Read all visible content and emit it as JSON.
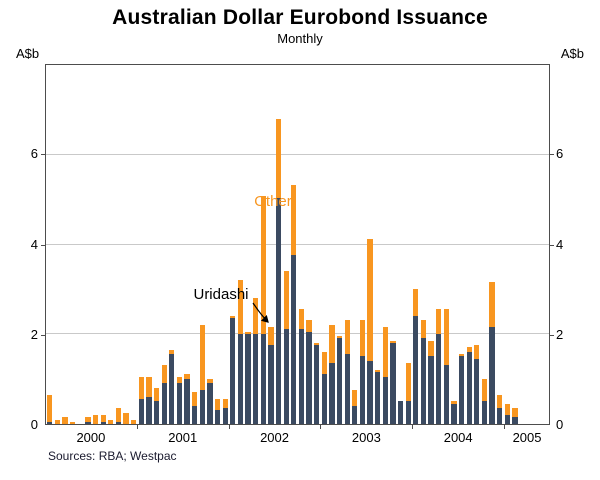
{
  "title": "Australian Dollar Eurobond Issuance",
  "subtitle": "Monthly",
  "axis_unit_left": "A$b",
  "axis_unit_right": "A$b",
  "source": "Sources:  RBA; Westpac",
  "annotations": {
    "other": "Other",
    "uridashi": "Uridashi"
  },
  "colors": {
    "uridashi": "#3b4a61",
    "other": "#f89620",
    "gridline": "#c9c9c9"
  },
  "chart_data": {
    "type": "bar",
    "stacked": true,
    "title": "Australian Dollar Eurobond Issuance",
    "subtitle": "Monthly",
    "ylabel": "A$b",
    "ylim": [
      0,
      8
    ],
    "yticks": [
      0,
      2,
      4,
      6
    ],
    "grid": true,
    "series_names": [
      "Uridashi",
      "Other"
    ],
    "x_year_labels": [
      "2000",
      "2001",
      "2002",
      "2003",
      "2004",
      "2005"
    ],
    "months": [
      {
        "m": "2000-01",
        "u": 0.05,
        "o": 0.6
      },
      {
        "m": "2000-02",
        "u": 0,
        "o": 0.1
      },
      {
        "m": "2000-03",
        "u": 0,
        "o": 0.15
      },
      {
        "m": "2000-04",
        "u": 0,
        "o": 0.05
      },
      {
        "m": "2000-05",
        "u": 0,
        "o": 0
      },
      {
        "m": "2000-06",
        "u": 0.05,
        "o": 0.1
      },
      {
        "m": "2000-07",
        "u": 0,
        "o": 0.2
      },
      {
        "m": "2000-08",
        "u": 0.05,
        "o": 0.15
      },
      {
        "m": "2000-09",
        "u": 0,
        "o": 0.1
      },
      {
        "m": "2000-10",
        "u": 0.05,
        "o": 0.3
      },
      {
        "m": "2000-11",
        "u": 0,
        "o": 0.25
      },
      {
        "m": "2000-12",
        "u": 0,
        "o": 0.1
      },
      {
        "m": "2001-01",
        "u": 0.55,
        "o": 0.5
      },
      {
        "m": "2001-02",
        "u": 0.6,
        "o": 0.45
      },
      {
        "m": "2001-03",
        "u": 0.5,
        "o": 0.3
      },
      {
        "m": "2001-04",
        "u": 0.9,
        "o": 0.4
      },
      {
        "m": "2001-05",
        "u": 1.55,
        "o": 0.1
      },
      {
        "m": "2001-06",
        "u": 0.9,
        "o": 0.15
      },
      {
        "m": "2001-07",
        "u": 1.0,
        "o": 0.1
      },
      {
        "m": "2001-08",
        "u": 0.4,
        "o": 0.3
      },
      {
        "m": "2001-09",
        "u": 0.75,
        "o": 1.45
      },
      {
        "m": "2001-10",
        "u": 0.9,
        "o": 0.1
      },
      {
        "m": "2001-11",
        "u": 0.3,
        "o": 0.25
      },
      {
        "m": "2001-12",
        "u": 0.35,
        "o": 0.2
      },
      {
        "m": "2002-01",
        "u": 2.35,
        "o": 0.05
      },
      {
        "m": "2002-02",
        "u": 2.0,
        "o": 1.2
      },
      {
        "m": "2002-03",
        "u": 2.0,
        "o": 0.05
      },
      {
        "m": "2002-04",
        "u": 2.0,
        "o": 0.8
      },
      {
        "m": "2002-05",
        "u": 2.0,
        "o": 3.05
      },
      {
        "m": "2002-06",
        "u": 1.75,
        "o": 0.4
      },
      {
        "m": "2002-07",
        "u": 5.0,
        "o": 1.75
      },
      {
        "m": "2002-08",
        "u": 2.1,
        "o": 1.3
      },
      {
        "m": "2002-09",
        "u": 3.75,
        "o": 1.55
      },
      {
        "m": "2002-10",
        "u": 2.1,
        "o": 0.45
      },
      {
        "m": "2002-11",
        "u": 2.05,
        "o": 0.25
      },
      {
        "m": "2002-12",
        "u": 1.75,
        "o": 0.05
      },
      {
        "m": "2003-01",
        "u": 1.1,
        "o": 0.5
      },
      {
        "m": "2003-02",
        "u": 1.35,
        "o": 0.85
      },
      {
        "m": "2003-03",
        "u": 1.9,
        "o": 0.05
      },
      {
        "m": "2003-04",
        "u": 1.55,
        "o": 0.75
      },
      {
        "m": "2003-05",
        "u": 0.4,
        "o": 0.35
      },
      {
        "m": "2003-06",
        "u": 1.5,
        "o": 0.8
      },
      {
        "m": "2003-07",
        "u": 1.4,
        "o": 2.7
      },
      {
        "m": "2003-08",
        "u": 1.15,
        "o": 0.05
      },
      {
        "m": "2003-09",
        "u": 1.05,
        "o": 1.1
      },
      {
        "m": "2003-10",
        "u": 1.8,
        "o": 0.05
      },
      {
        "m": "2003-11",
        "u": 0.5,
        "o": 0
      },
      {
        "m": "2003-12",
        "u": 0.5,
        "o": 0.85
      },
      {
        "m": "2004-01",
        "u": 2.4,
        "o": 0.6
      },
      {
        "m": "2004-02",
        "u": 1.9,
        "o": 0.4
      },
      {
        "m": "2004-03",
        "u": 1.5,
        "o": 0.35
      },
      {
        "m": "2004-04",
        "u": 2.0,
        "o": 0.55
      },
      {
        "m": "2004-05",
        "u": 1.3,
        "o": 1.25
      },
      {
        "m": "2004-06",
        "u": 0.45,
        "o": 0.05
      },
      {
        "m": "2004-07",
        "u": 1.5,
        "o": 0.05
      },
      {
        "m": "2004-08",
        "u": 1.6,
        "o": 0.1
      },
      {
        "m": "2004-09",
        "u": 1.45,
        "o": 0.3
      },
      {
        "m": "2004-10",
        "u": 0.5,
        "o": 0.5
      },
      {
        "m": "2004-11",
        "u": 2.15,
        "o": 1.0
      },
      {
        "m": "2004-12",
        "u": 0.35,
        "o": 0.3
      },
      {
        "m": "2005-01",
        "u": 0.2,
        "o": 0.25
      },
      {
        "m": "2005-02",
        "u": 0.15,
        "o": 0.2
      },
      {
        "m": "2005-03",
        "u": 0,
        "o": 0
      },
      {
        "m": "2005-04",
        "u": 0,
        "o": 0
      },
      {
        "m": "2005-05",
        "u": 0,
        "o": 0
      },
      {
        "m": "2005-06",
        "u": 0,
        "o": 0
      }
    ]
  }
}
